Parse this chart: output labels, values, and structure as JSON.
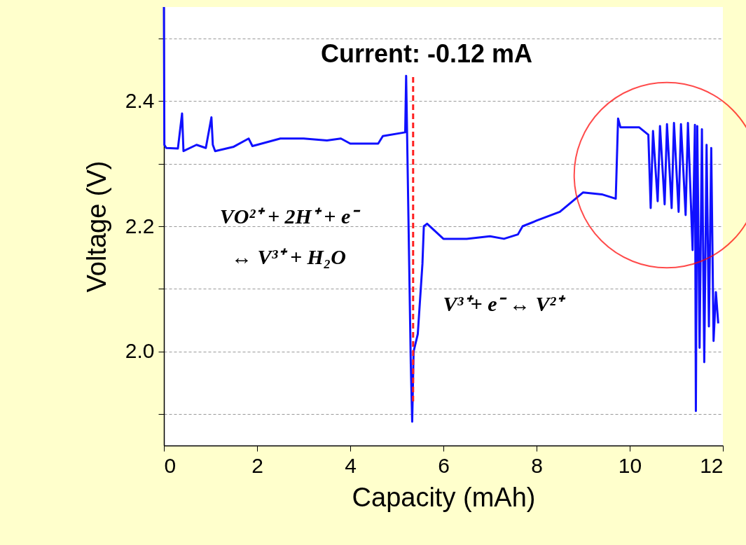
{
  "chart_data": {
    "type": "line",
    "title": "Current: -0.12 mA",
    "xlabel": "Capacity (mAh)",
    "ylabel": "Voltage (V)",
    "annotations": [
      "VO²⁺ + 2H⁺ + e⁻",
      "↔ V³⁺ + H₂O",
      "V³⁺+ e⁻ ↔ V²⁺"
    ],
    "series": [
      {
        "color": "#1010ff",
        "x": [
          0,
          0.01,
          0.05,
          0.3,
          0.39,
          0.42,
          0.7,
          0.9,
          1.02,
          1.05,
          1.1,
          1.5,
          1.82,
          1.9,
          2.0,
          2.5,
          3.0,
          3.5,
          3.8,
          4.0,
          4.6,
          4.7,
          5.18,
          5.2,
          5.22,
          5.3,
          5.33,
          5.36,
          5.45,
          5.55,
          5.58,
          5.65,
          6.0,
          6.5,
          7.0,
          7.3,
          7.6,
          7.7,
          8.0,
          8.5,
          9.0,
          9.4,
          9.7,
          9.75,
          9.8,
          10.2,
          10.4,
          10.45,
          10.5,
          10.6,
          10.65,
          10.75,
          10.8,
          10.9,
          10.95,
          11.05,
          11.1,
          11.2,
          11.25,
          11.35,
          11.4,
          11.42,
          11.45,
          11.5,
          11.55,
          11.6,
          11.65,
          11.7,
          11.75,
          11.8,
          11.85,
          11.9
        ],
        "values": [
          2.55,
          2.33,
          2.325,
          2.324,
          2.38,
          2.32,
          2.33,
          2.325,
          2.374,
          2.33,
          2.32,
          2.327,
          2.34,
          2.328,
          2.33,
          2.34,
          2.34,
          2.337,
          2.34,
          2.332,
          2.332,
          2.344,
          2.35,
          2.44,
          2.35,
          1.98,
          1.888,
          2.0,
          2.028,
          2.14,
          2.2,
          2.204,
          2.18,
          2.18,
          2.184,
          2.18,
          2.187,
          2.2,
          2.209,
          2.223,
          2.254,
          2.251,
          2.244,
          2.372,
          2.358,
          2.358,
          2.346,
          2.229,
          2.352,
          2.24,
          2.36,
          2.235,
          2.363,
          2.229,
          2.365,
          2.223,
          2.363,
          2.218,
          2.365,
          2.162,
          2.362,
          1.905,
          2.36,
          2.006,
          2.355,
          1.983,
          2.33,
          2.04,
          2.325,
          2.017,
          2.095,
          2.045
        ]
      }
    ],
    "xlim": [
      0,
      12
    ],
    "xticks": [
      0,
      2,
      4,
      6,
      8,
      10,
      12
    ],
    "ylim": [
      1.85,
      2.55
    ],
    "yticks": [
      {
        "value": 1.9,
        "label": null
      },
      {
        "value": 2.0,
        "label": "2.0"
      },
      {
        "value": 2.1,
        "label": null
      },
      {
        "value": 2.2,
        "label": "2.2"
      },
      {
        "value": 2.3,
        "label": null
      },
      {
        "value": 2.4,
        "label": "2.4"
      },
      {
        "value": 2.5,
        "label": null
      }
    ],
    "grid": "y",
    "line_style": "solid",
    "marker": "none",
    "ref_lines": [
      {
        "axis": "x",
        "value": 5.35,
        "label": null,
        "color": "#ff2020",
        "line_style": "dashed"
      }
    ]
  }
}
